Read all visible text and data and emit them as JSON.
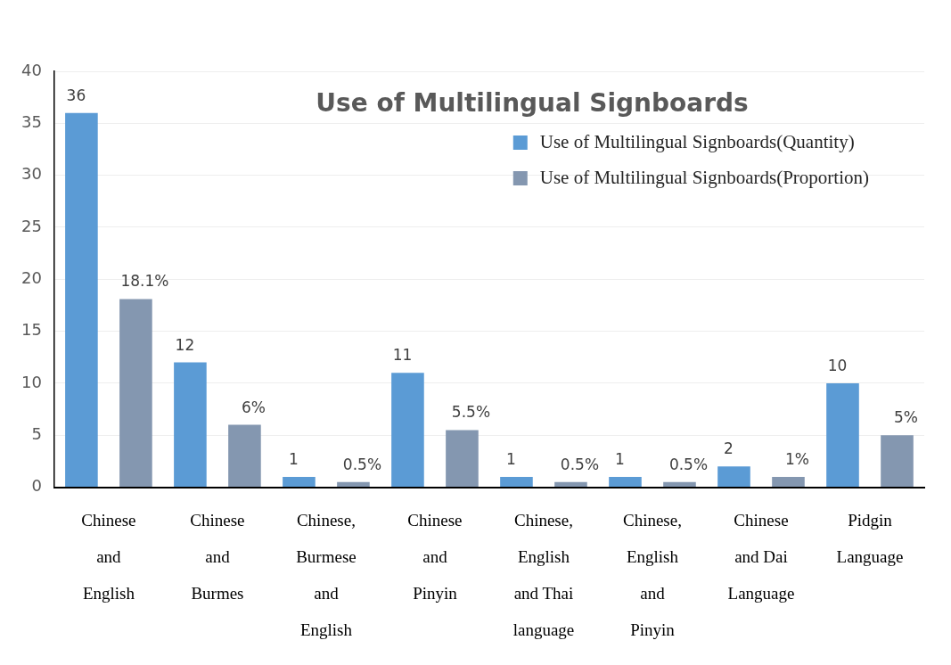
{
  "chart_data": {
    "type": "bar",
    "title": "Use of Multilingual Signboards",
    "categories": [
      "Chinese and English",
      "Chinese and Burmes",
      "Chinese, Burmese and English",
      "Chinese and Pinyin",
      "Chinese, English and Thai language",
      "Chinese, English and Pinyin",
      "Chinese and Dai Language",
      "Pidgin Language"
    ],
    "series": [
      {
        "name": "Use of Multilingual Signboards(Quantity)",
        "color": "#5b9bd5",
        "values": [
          36,
          12,
          1,
          11,
          1,
          1,
          2,
          10
        ],
        "value_labels": [
          "36",
          "12",
          "1",
          "11",
          "1",
          "1",
          "2",
          "10"
        ]
      },
      {
        "name": "Use of Multilingual Signboards(Proportion)",
        "color": "#8497b0",
        "values": [
          18.1,
          6,
          0.5,
          5.5,
          0.5,
          0.5,
          1,
          5
        ],
        "value_labels": [
          "18.1%",
          "6%",
          "0.5%",
          "5.5%",
          "0.5%",
          "0.5%",
          "1%",
          "5%"
        ]
      }
    ],
    "ylim": [
      0,
      40
    ],
    "yticks": [
      0,
      5,
      10,
      15,
      20,
      25,
      30,
      35,
      40
    ],
    "grid": "y",
    "legend": "top right"
  }
}
